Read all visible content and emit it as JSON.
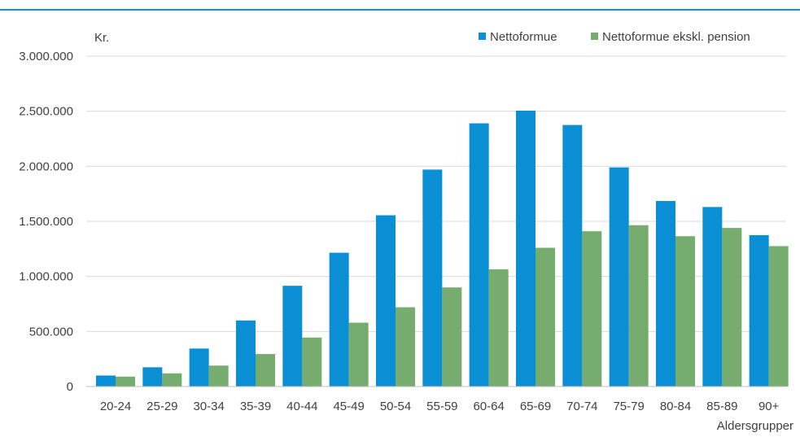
{
  "chart_data": {
    "type": "bar",
    "unit_label": "Kr.",
    "xlabel": "Aldersgrupper",
    "ylim": [
      0,
      3000000
    ],
    "y_ticks": [
      0,
      500000,
      1000000,
      1500000,
      2000000,
      2500000,
      3000000
    ],
    "y_tick_labels": [
      "0",
      "500.000",
      "1.000.000",
      "1.500.000",
      "2.000.000",
      "2.500.000",
      "3.000.000"
    ],
    "categories": [
      "20-24",
      "25-29",
      "30-34",
      "35-39",
      "40-44",
      "45-49",
      "50-54",
      "55-59",
      "60-64",
      "65-69",
      "70-74",
      "75-79",
      "80-84",
      "85-89",
      "90+"
    ],
    "series": [
      {
        "name": "Nettoformue",
        "color": "#0a8fd4",
        "values": [
          100000,
          175000,
          345000,
          600000,
          915000,
          1215000,
          1555000,
          1970000,
          2390000,
          2505000,
          2375000,
          1990000,
          1685000,
          1630000,
          1375000
        ]
      },
      {
        "name": "Nettoformue ekskl. pension",
        "color": "#76ac6e",
        "values": [
          90000,
          120000,
          190000,
          295000,
          445000,
          580000,
          720000,
          900000,
          1065000,
          1260000,
          1410000,
          1465000,
          1365000,
          1440000,
          1275000
        ]
      }
    ],
    "grid": "horizontal",
    "legend_position": "top-right"
  }
}
